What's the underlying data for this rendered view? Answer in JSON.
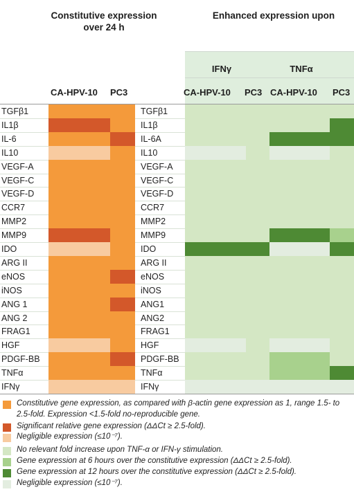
{
  "headers": {
    "constitutive": "Constitutive expression over 24 h",
    "enhanced": "Enhanced expression upon",
    "ifn": "IFNγ",
    "tnf": "TNFα",
    "left_cols": [
      "CA-HPV-10",
      "PC3"
    ],
    "right_cols": [
      "CA-HPV-10",
      "PC3",
      "CA-HPV-10",
      "PC3"
    ]
  },
  "colors": {
    "constitutive": "#f49a3b",
    "significant": "#d3582a",
    "negligible_left": "#f8cba0",
    "no_relevant": "#d4e7c4",
    "six_hours": "#a8d18d",
    "twelve_hours": "#4e8a34",
    "negligible_right": "#e3ede0"
  },
  "rows": [
    {
      "left_label": "TGFβ1",
      "right_label": "TGFβ1",
      "left": [
        "c",
        "c"
      ],
      "right": [
        "n",
        "n",
        "n",
        "n"
      ]
    },
    {
      "left_label": "IL1β",
      "right_label": "IL1β",
      "left": [
        "s",
        "c"
      ],
      "right": [
        "n",
        "n",
        "n",
        "t"
      ]
    },
    {
      "left_label": "IL-6",
      "right_label": "IL-6A",
      "left": [
        "c",
        "s"
      ],
      "right": [
        "n",
        "n",
        "t",
        "t"
      ]
    },
    {
      "left_label": "IL10",
      "right_label": "IL10",
      "left": [
        "g",
        "c"
      ],
      "right": [
        "g",
        "n",
        "g",
        "n"
      ]
    },
    {
      "left_label": "VEGF-A",
      "right_label": "VEGF-A",
      "left": [
        "c",
        "c"
      ],
      "right": [
        "n",
        "n",
        "n",
        "n"
      ]
    },
    {
      "left_label": "VEGF-C",
      "right_label": "VEGF-C",
      "left": [
        "c",
        "c"
      ],
      "right": [
        "n",
        "n",
        "n",
        "n"
      ]
    },
    {
      "left_label": "VEGF-D",
      "right_label": "VEGF-D",
      "left": [
        "c",
        "c"
      ],
      "right": [
        "n",
        "n",
        "n",
        "n"
      ]
    },
    {
      "left_label": "CCR7",
      "right_label": "CCR7",
      "left": [
        "c",
        "c"
      ],
      "right": [
        "n",
        "n",
        "n",
        "n"
      ]
    },
    {
      "left_label": "MMP2",
      "right_label": "MMP2",
      "left": [
        "c",
        "c"
      ],
      "right": [
        "n",
        "n",
        "n",
        "n"
      ]
    },
    {
      "left_label": "MMP9",
      "right_label": "MMP9",
      "left": [
        "s",
        "c"
      ],
      "right": [
        "n",
        "n",
        "t",
        "x"
      ]
    },
    {
      "left_label": "IDO",
      "right_label": "IDO",
      "left": [
        "g",
        "c"
      ],
      "right": [
        "t",
        "t",
        "g",
        "t"
      ]
    },
    {
      "left_label": "ARG II",
      "right_label": "ARG II",
      "left": [
        "c",
        "c"
      ],
      "right": [
        "n",
        "n",
        "n",
        "n"
      ]
    },
    {
      "left_label": "eNOS",
      "right_label": "eNOS",
      "left": [
        "c",
        "s"
      ],
      "right": [
        "n",
        "n",
        "n",
        "n"
      ]
    },
    {
      "left_label": "iNOS",
      "right_label": "iNOS",
      "left": [
        "c",
        "c"
      ],
      "right": [
        "n",
        "n",
        "n",
        "n"
      ]
    },
    {
      "left_label": "ANG 1",
      "right_label": "ANG1",
      "left": [
        "c",
        "s"
      ],
      "right": [
        "n",
        "n",
        "n",
        "n"
      ]
    },
    {
      "left_label": "ANG 2",
      "right_label": "ANG2",
      "left": [
        "c",
        "c"
      ],
      "right": [
        "n",
        "n",
        "n",
        "n"
      ]
    },
    {
      "left_label": "FRAG1",
      "right_label": "FRAG1",
      "left": [
        "c",
        "c"
      ],
      "right": [
        "n",
        "n",
        "n",
        "n"
      ]
    },
    {
      "left_label": "HGF",
      "right_label": "HGF",
      "left": [
        "g",
        "c"
      ],
      "right": [
        "g",
        "n",
        "g",
        "n"
      ]
    },
    {
      "left_label": "PDGF-BB",
      "right_label": "PDGF-BB",
      "left": [
        "c",
        "s"
      ],
      "right": [
        "n",
        "n",
        "x",
        "n"
      ]
    },
    {
      "left_label": "TNFα",
      "right_label": "TNFα",
      "left": [
        "c",
        "c"
      ],
      "right": [
        "n",
        "n",
        "x",
        "t"
      ]
    },
    {
      "left_label": "IFNγ",
      "right_label": "IFNγ",
      "left": [
        "g",
        "g"
      ],
      "right": [
        "g",
        "g",
        "g",
        "g"
      ]
    }
  ],
  "legend": [
    {
      "color_key": "constitutive",
      "text": "Constitutive gene expression, as compared with β-actin gene expression as 1, range 1.5- to 2.5-fold. Expression <1.5-fold no-reproducible gene."
    },
    {
      "color_key": "significant",
      "text": "Significant relative gene expression (ΔΔCt ≥ 2.5-fold)."
    },
    {
      "color_key": "negligible_left",
      "text": "Negligible expression (≤10⁻⁷)."
    },
    {
      "color_key": "no_relevant",
      "text": "No relevant fold increase upon TNF-α or IFN-γ stimulation."
    },
    {
      "color_key": "six_hours",
      "text": "Gene expression at 6 hours over the constitutive expression (ΔΔCt ≥ 2.5-fold)."
    },
    {
      "color_key": "twelve_hours",
      "text": "Gene expression at 12 hours over the constitutive expression (ΔΔCt ≥ 2.5-fold)."
    },
    {
      "color_key": "negligible_right",
      "text": "Negligible expression (≤10⁻⁷)."
    }
  ]
}
